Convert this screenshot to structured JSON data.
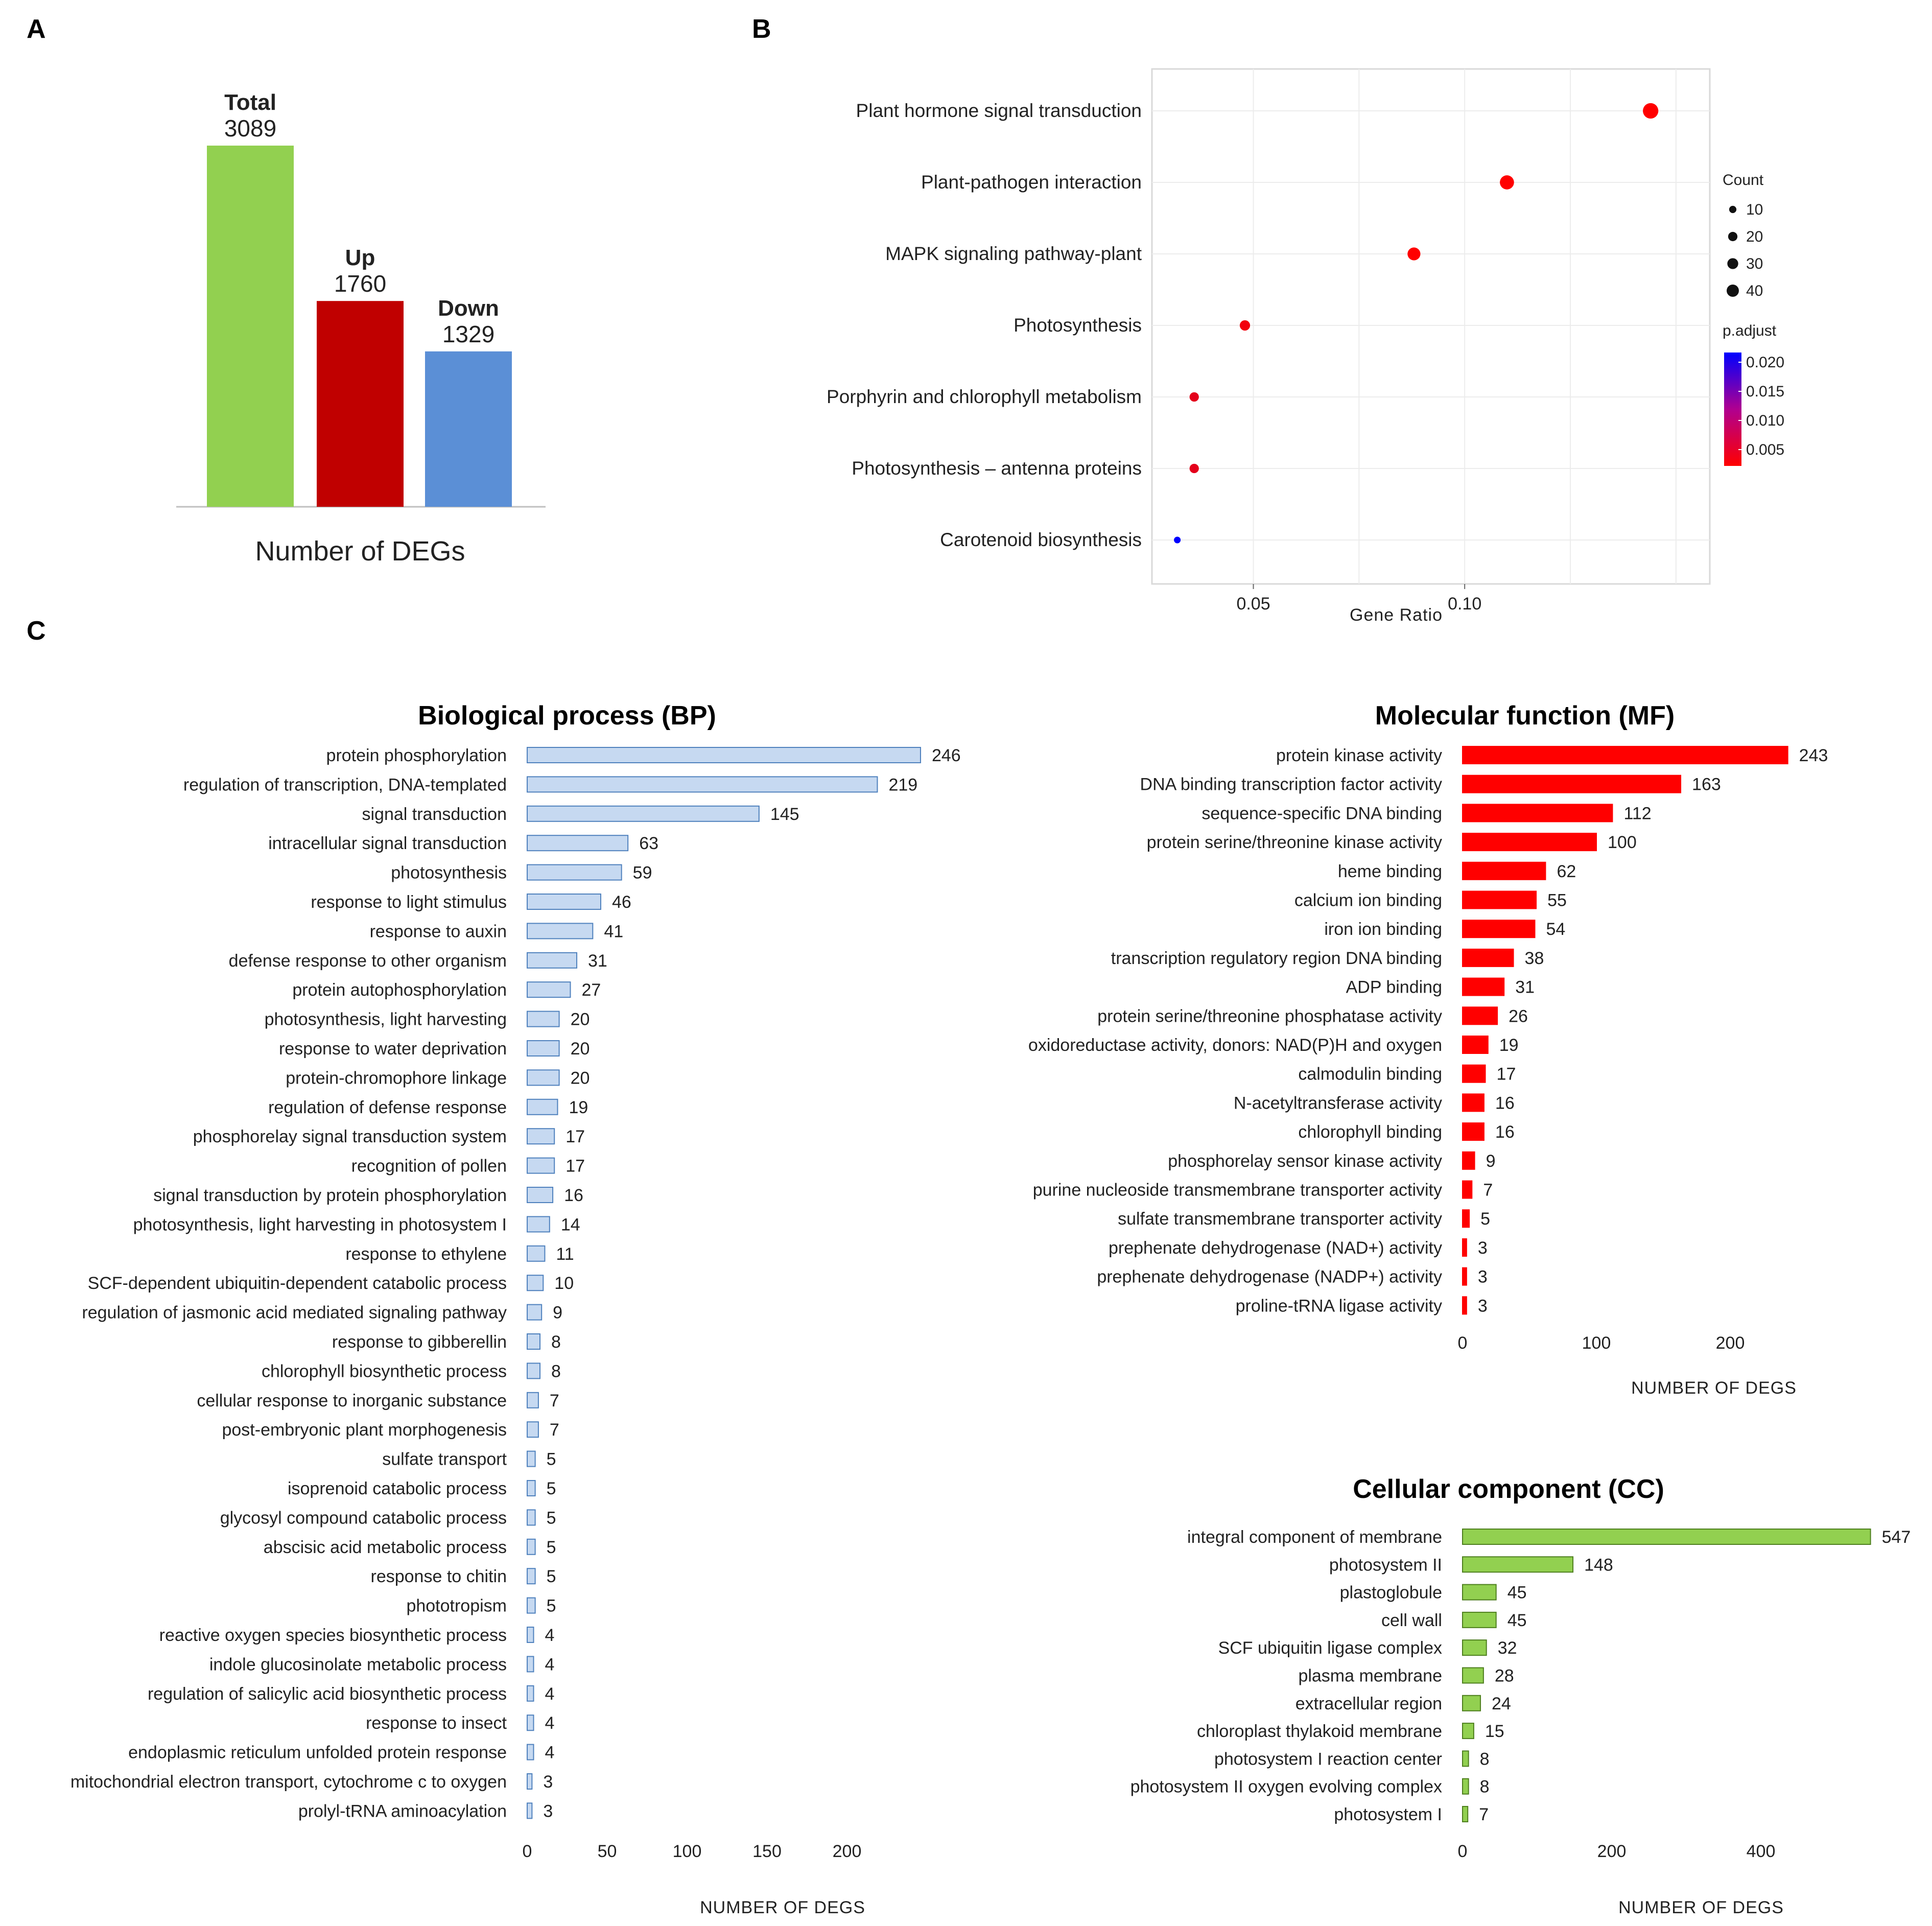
{
  "panels": {
    "a": "A",
    "b": "B",
    "c": "C"
  },
  "chart_data": [
    {
      "id": "degs",
      "type": "bar",
      "xlabel": "Number of DEGs",
      "categories": [
        "Total",
        "Up",
        "Down"
      ],
      "values": [
        3089,
        1760,
        1329
      ],
      "colors": [
        "#92d050",
        "#c00000",
        "#5b8fd6"
      ],
      "ylim": [
        0,
        3089
      ]
    },
    {
      "id": "kegg",
      "type": "scatter",
      "xlabel": "Gene Ratio",
      "xticks": [
        0.05,
        0.1
      ],
      "xtick_labels": [
        "0.05",
        "0.10"
      ],
      "xlim": [
        0.026,
        0.158
      ],
      "categories": [
        "Plant hormone signal transduction",
        "Plant-pathogen interaction",
        "MAPK signaling pathway-plant",
        "Photosynthesis",
        "Porphyrin and chlorophyll metabolism",
        "Photosynthesis – antenna proteins",
        "Carotenoid biosynthesis"
      ],
      "x": [
        0.144,
        0.11,
        0.088,
        0.048,
        0.036,
        0.036,
        0.032
      ],
      "count": [
        35,
        28,
        22,
        12,
        9,
        9,
        3
      ],
      "p_adjust": [
        0.001,
        0.001,
        0.001,
        0.002,
        0.003,
        0.003,
        0.021
      ],
      "size_legend": {
        "title": "Count",
        "values": [
          10,
          20,
          30,
          40
        ],
        "labels": [
          "10",
          "20",
          "30",
          "40"
        ]
      },
      "color_legend": {
        "title": "p.adjust",
        "labels": [
          "0.020",
          "0.015",
          "0.010",
          "0.005"
        ],
        "low_color": "#ff0000",
        "high_color": "#0000ff"
      }
    },
    {
      "id": "bp",
      "type": "bar",
      "orientation": "horizontal",
      "title": "Biological process (BP)",
      "xlabel": "NUMBER OF DEGS",
      "xticks": [
        0,
        50,
        100,
        150,
        200
      ],
      "xtick_labels": [
        "0",
        "50",
        "100",
        "150",
        "200"
      ],
      "fill": "#c6d9f1",
      "stroke": "#4f81bd",
      "categories": [
        "protein phosphorylation",
        "regulation of transcription, DNA-templated",
        "signal transduction",
        "intracellular signal transduction",
        "photosynthesis",
        "response to light stimulus",
        "response to auxin",
        "defense response to other organism",
        "protein autophosphorylation",
        "photosynthesis, light harvesting",
        "response to water deprivation",
        "protein-chromophore linkage",
        "regulation of defense response",
        "phosphorelay signal transduction system",
        "recognition of pollen",
        "signal transduction by protein phosphorylation",
        "photosynthesis, light harvesting in photosystem I",
        "response to ethylene",
        "SCF-dependent ubiquitin-dependent catabolic process",
        "regulation of jasmonic acid mediated signaling pathway",
        "response to gibberellin",
        "chlorophyll biosynthetic process",
        "cellular response to inorganic substance",
        "post-embryonic plant morphogenesis",
        "sulfate transport",
        "isoprenoid catabolic process",
        "glycosyl compound catabolic process",
        "abscisic acid metabolic process",
        "response to chitin",
        "phototropism",
        "reactive oxygen species biosynthetic process",
        "indole glucosinolate metabolic process",
        "regulation of salicylic acid biosynthetic process",
        "response to insect",
        "endoplasmic reticulum unfolded protein response",
        "mitochondrial electron transport, cytochrome c to oxygen",
        "prolyl-tRNA aminoacylation"
      ],
      "values": [
        246,
        219,
        145,
        63,
        59,
        46,
        41,
        31,
        27,
        20,
        20,
        20,
        19,
        17,
        17,
        16,
        14,
        11,
        10,
        9,
        8,
        8,
        7,
        7,
        5,
        5,
        5,
        5,
        5,
        5,
        4,
        4,
        4,
        4,
        4,
        3,
        3
      ],
      "value_labels": [
        "246",
        "219",
        "145",
        "63",
        "59",
        "46",
        "41",
        "31",
        "27",
        "20",
        "20",
        "20",
        "19",
        "17",
        "17",
        "16",
        "14",
        "11",
        "10",
        "9",
        "8",
        "8",
        "7",
        "7",
        "5",
        "5",
        "5",
        "5",
        "5",
        "5",
        "4",
        "4",
        "4",
        "4",
        "4",
        "3",
        "3"
      ]
    },
    {
      "id": "mf",
      "type": "bar",
      "orientation": "horizontal",
      "title": "Molecular function (MF)",
      "xlabel": "NUMBER OF DEGS",
      "xticks": [
        0,
        100,
        200
      ],
      "xtick_labels": [
        "0",
        "100",
        "200"
      ],
      "fill": "#ff0000",
      "stroke": "#ff0000",
      "categories": [
        "protein kinase activity",
        "DNA binding transcription factor activity",
        "sequence-specific DNA binding",
        "protein serine/threonine kinase activity",
        "heme binding",
        "calcium ion binding",
        "iron ion binding",
        "transcription regulatory region DNA binding",
        "ADP binding",
        "protein serine/threonine phosphatase activity",
        "oxidoreductase activity, donors: NAD(P)H and oxygen",
        "calmodulin binding",
        "N-acetyltransferase activity",
        "chlorophyll binding",
        "phosphorelay sensor kinase activity",
        "purine nucleoside transmembrane transporter activity",
        "sulfate transmembrane transporter activity",
        "prephenate dehydrogenase (NAD+) activity",
        "prephenate dehydrogenase (NADP+) activity",
        "proline-tRNA ligase activity"
      ],
      "values": [
        243,
        163,
        112,
        100,
        62,
        55,
        54,
        38,
        31,
        26,
        19,
        17,
        16,
        16,
        9,
        7,
        5,
        3,
        3,
        3
      ],
      "value_labels": [
        "243",
        "163",
        "112",
        "100",
        "62",
        "55",
        "54",
        "38",
        "31",
        "26",
        "19",
        "17",
        "16",
        "16",
        "9",
        "7",
        "5",
        "3",
        "3",
        "3"
      ]
    },
    {
      "id": "cc",
      "type": "bar",
      "orientation": "horizontal",
      "title": "Cellular component (CC)",
      "xlabel": "NUMBER OF DEGS",
      "xticks": [
        0,
        200,
        400
      ],
      "xtick_labels": [
        "0",
        "200",
        "400"
      ],
      "fill": "#92d050",
      "stroke": "#4e7f1e",
      "categories": [
        "integral component of membrane",
        "photosystem II",
        "plastoglobule",
        "cell wall",
        "SCF ubiquitin ligase complex",
        "plasma membrane",
        "extracellular region",
        "chloroplast thylakoid membrane",
        "photosystem I reaction center",
        "photosystem II oxygen evolving complex",
        "photosystem I"
      ],
      "values": [
        547,
        148,
        45,
        45,
        32,
        28,
        24,
        15,
        8,
        8,
        7
      ],
      "value_labels": [
        "547",
        "148",
        "45",
        "45",
        "32",
        "28",
        "24",
        "15",
        "8",
        "8",
        "7"
      ]
    }
  ]
}
